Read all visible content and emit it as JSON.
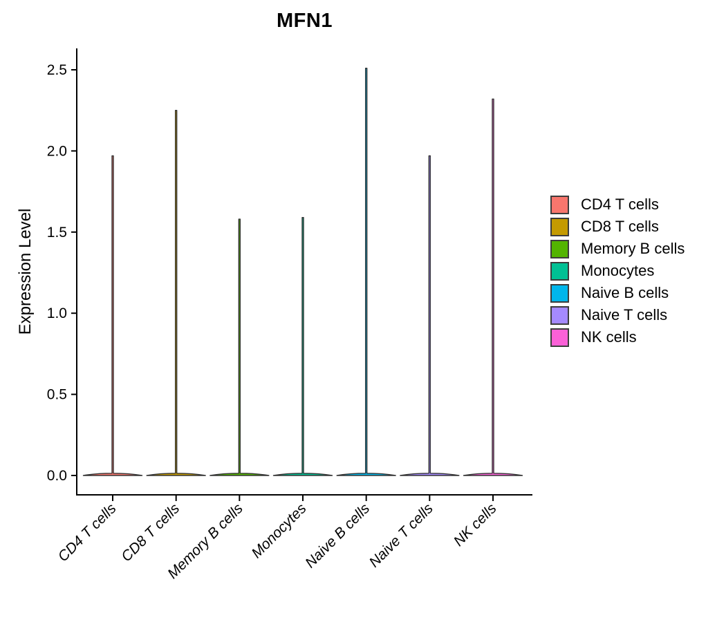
{
  "chart_data": {
    "type": "violin",
    "title": "MFN1",
    "ylabel": "Expression Level",
    "xlabel": "",
    "ylim": [
      0,
      2.63
    ],
    "ytick_values": [
      0.0,
      0.5,
      1.0,
      1.5,
      2.0,
      2.5
    ],
    "ytick_labels": [
      "0.0",
      "0.5",
      "1.0",
      "1.5",
      "2.0",
      "2.5"
    ],
    "grid": false,
    "axis_color": "#000000",
    "violin_outline_color": "#333333",
    "categories": [
      "CD4 T cells",
      "CD8 T cells",
      "Memory B cells",
      "Monocytes",
      "Naive B cells",
      "Naive T cells",
      "NK cells"
    ],
    "series": [
      {
        "name": "CD4 T cells",
        "color": "#F8766D",
        "min_expression": 0.0,
        "max_expression": 1.97
      },
      {
        "name": "CD8 T cells",
        "color": "#C49A00",
        "min_expression": 0.0,
        "max_expression": 2.25
      },
      {
        "name": "Memory B cells",
        "color": "#53B400",
        "min_expression": 0.0,
        "max_expression": 1.58
      },
      {
        "name": "Monocytes",
        "color": "#00C094",
        "min_expression": 0.0,
        "max_expression": 1.59
      },
      {
        "name": "Naive B cells",
        "color": "#00B6EB",
        "min_expression": 0.0,
        "max_expression": 2.51
      },
      {
        "name": "Naive T cells",
        "color": "#A58AFF",
        "min_expression": 0.0,
        "max_expression": 1.97
      },
      {
        "name": "NK cells",
        "color": "#FB61D7",
        "min_expression": 0.0,
        "max_expression": 2.32
      }
    ],
    "legend": {
      "position": "right",
      "items": [
        {
          "label": "CD4 T cells",
          "color": "#F8766D"
        },
        {
          "label": "CD8 T cells",
          "color": "#C49A00"
        },
        {
          "label": "Memory B cells",
          "color": "#53B400"
        },
        {
          "label": "Monocytes",
          "color": "#00C094"
        },
        {
          "label": "Naive B cells",
          "color": "#00B6EB"
        },
        {
          "label": "Naive T cells",
          "color": "#A58AFF"
        },
        {
          "label": "NK cells",
          "color": "#FB61D7"
        }
      ]
    }
  }
}
